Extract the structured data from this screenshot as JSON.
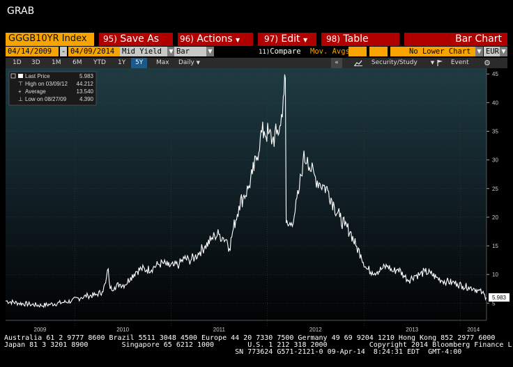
{
  "window": {
    "title": "GRAB"
  },
  "menu": {
    "ticker": "GGGB10YR Index",
    "save_num": "95)",
    "save_label": "Save As",
    "actions_num": "96)",
    "actions_label": "Actions",
    "edit_num": "97)",
    "edit_label": "Edit",
    "table_num": "98)",
    "table_label": "Table",
    "chart_type": "Bar Chart"
  },
  "params": {
    "start_date": "04/14/2009",
    "dash": "-",
    "end_date": "04/09/2014",
    "field": "Mid Yield",
    "style": "Bar",
    "compare_num": "11)",
    "compare_label": "Compare",
    "mov_avgs": "Mov. Avgs",
    "lower_chart": "No Lower Chart",
    "currency": "EUR"
  },
  "toolbar": {
    "ranges": [
      "1D",
      "3D",
      "1M",
      "6M",
      "YTD",
      "1Y",
      "5Y",
      "Max"
    ],
    "active_range": "5Y",
    "frequency": "Daily",
    "collapse_glyph": "«",
    "security_study": "Security/Study",
    "event": "Event"
  },
  "legend": {
    "last_price_label": "Last Price",
    "last_price_value": "5.983",
    "high_label": "High on 03/09/12",
    "high_value": "44.212",
    "average_label": "Average",
    "average_value": "13.540",
    "low_label": "Low on 08/27/09",
    "low_value": "4.390"
  },
  "footer": {
    "line1": "Australia 61 2 9777 8600 Brazil 5511 3048 4500 Europe 44 20 7330 7500 Germany 49 69 9204 1210 Hong Kong 852 2977 6000",
    "line2": "Japan 81 3 3201 8900        Singapore 65 6212 1000        U.S. 1 212 318 2000          Copyright 2014 Bloomberg Finance L.P.",
    "line3": "                                                       SN 773624 G571-2121-0 09-Apr-14  8:24:31 EDT  GMT-4:00"
  },
  "colors": {
    "menu_red": "#b00000",
    "amber": "#f7a400",
    "active_blue": "#1c5a8c",
    "line": "#ffffff"
  },
  "chart_data": {
    "type": "line",
    "title": "",
    "xlabel": "",
    "ylabel": "",
    "ylim": [
      2,
      46
    ],
    "yticks": [
      5,
      10,
      15,
      20,
      25,
      30,
      35,
      40,
      45
    ],
    "year_labels": [
      "2009",
      "2010",
      "2011",
      "2012",
      "2013",
      "2014"
    ],
    "last_value_label": "5.983",
    "series": [
      {
        "x": [
          "2009-04-14",
          "2009-06-01",
          "2009-07-15",
          "2009-08-27",
          "2009-10-01",
          "2009-11-15",
          "2009-12-20",
          "2010-01-25",
          "2010-02-20",
          "2010-03-20",
          "2010-04-15",
          "2010-04-28",
          "2010-05-08",
          "2010-05-15",
          "2010-06-01",
          "2010-06-20",
          "2010-07-10",
          "2010-08-01",
          "2010-08-20",
          "2010-09-10",
          "2010-10-01",
          "2010-10-25",
          "2010-11-15",
          "2010-12-01",
          "2010-12-20",
          "2011-01-10",
          "2011-02-01",
          "2011-02-20",
          "2011-03-10",
          "2011-04-01",
          "2011-04-20",
          "2011-05-10",
          "2011-06-01",
          "2011-06-15",
          "2011-07-01",
          "2011-07-15",
          "2011-08-01",
          "2011-08-10",
          "2011-08-25",
          "2011-09-15",
          "2011-10-01",
          "2011-10-20",
          "2011-11-05",
          "2011-11-20",
          "2011-12-05",
          "2011-12-20",
          "2012-01-05",
          "2012-01-20",
          "2012-02-05",
          "2012-02-20",
          "2012-03-01",
          "2012-03-09",
          "2012-03-12",
          "2012-03-20",
          "2012-04-01",
          "2012-04-15",
          "2012-05-01",
          "2012-05-15",
          "2012-06-01",
          "2012-06-15",
          "2012-07-01",
          "2012-07-15",
          "2012-08-01",
          "2012-08-20",
          "2012-09-10",
          "2012-10-01",
          "2012-10-20",
          "2012-11-10",
          "2012-12-01",
          "2012-12-20",
          "2013-01-10",
          "2013-02-01",
          "2013-02-20",
          "2013-03-10",
          "2013-04-01",
          "2013-04-20",
          "2013-05-10",
          "2013-06-01",
          "2013-06-20",
          "2013-07-10",
          "2013-08-01",
          "2013-08-20",
          "2013-09-10",
          "2013-10-01",
          "2013-10-20",
          "2013-11-10",
          "2013-12-01",
          "2013-12-20",
          "2014-01-10",
          "2014-02-01",
          "2014-02-20",
          "2014-03-10",
          "2014-03-25",
          "2014-04-09"
        ],
        "y": [
          5.4,
          5.0,
          4.8,
          4.6,
          4.8,
          5.1,
          5.4,
          6.0,
          6.3,
          6.4,
          7.0,
          8.5,
          11.0,
          7.5,
          7.8,
          8.3,
          8.2,
          9.5,
          10.5,
          11.0,
          10.8,
          11.2,
          11.8,
          12.0,
          11.5,
          11.5,
          11.8,
          12.8,
          12.5,
          13.0,
          14.0,
          15.0,
          16.0,
          16.8,
          17.0,
          16.5,
          16.0,
          14.5,
          18.0,
          22.0,
          23.5,
          25.0,
          27.5,
          30.0,
          34.0,
          35.0,
          34.5,
          33.5,
          34.5,
          36.0,
          41.0,
          44.2,
          19.0,
          18.5,
          19.0,
          21.0,
          25.0,
          30.0,
          30.5,
          28.0,
          27.0,
          26.0,
          25.5,
          24.5,
          22.0,
          20.0,
          18.5,
          17.5,
          15.0,
          13.5,
          11.0,
          10.5,
          10.5,
          11.0,
          11.5,
          10.5,
          11.0,
          9.8,
          9.0,
          9.8,
          10.0,
          10.5,
          10.2,
          9.5,
          9.0,
          8.8,
          8.6,
          8.4,
          8.0,
          7.8,
          7.6,
          7.2,
          6.8,
          6.0
        ]
      }
    ]
  }
}
